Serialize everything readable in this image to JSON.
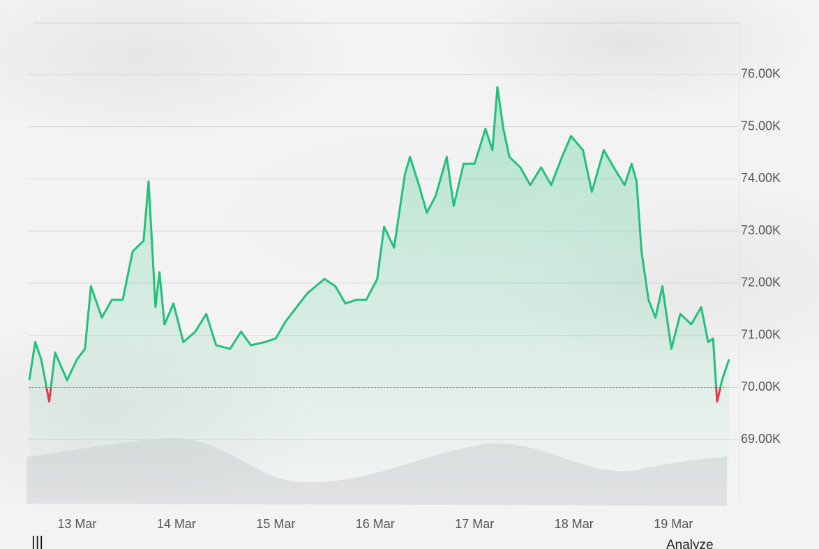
{
  "chart_data": {
    "type": "line",
    "x": [
      -0.48,
      -0.42,
      -0.36,
      -0.28,
      -0.22,
      -0.1,
      0,
      0.08,
      0.14,
      0.25,
      0.35,
      0.46,
      0.56,
      0.67,
      0.72,
      0.79,
      0.83,
      0.88,
      0.97,
      1.07,
      1.19,
      1.3,
      1.4,
      1.54,
      1.65,
      1.75,
      1.89,
      2.0,
      2.1,
      2.21,
      2.32,
      2.49,
      2.6,
      2.7,
      2.81,
      2.91,
      3.02,
      3.09,
      3.19,
      3.3,
      3.35,
      3.44,
      3.52,
      3.61,
      3.72,
      3.79,
      3.89,
      4.0,
      4.11,
      4.18,
      4.23,
      4.29,
      4.35,
      4.46,
      4.56,
      4.67,
      4.77,
      4.88,
      4.97,
      5.09,
      5.18,
      5.3,
      5.4,
      5.51,
      5.58,
      5.63,
      5.68,
      5.75,
      5.82,
      5.89,
      5.98,
      6.07,
      6.18,
      6.28,
      6.35,
      6.4,
      6.44,
      6.49,
      6.56
    ],
    "values": [
      70140,
      70870,
      70540,
      69730,
      70670,
      70140,
      70540,
      70740,
      71940,
      71340,
      71680,
      71680,
      72610,
      72810,
      73950,
      71540,
      72210,
      71210,
      71610,
      70870,
      71070,
      71410,
      70810,
      70740,
      71070,
      70810,
      70870,
      70940,
      71270,
      71540,
      71810,
      72080,
      71940,
      71610,
      71680,
      71680,
      72080,
      73080,
      72680,
      74090,
      74420,
      73880,
      73350,
      73680,
      74420,
      73480,
      74290,
      74290,
      74960,
      74550,
      75760,
      74960,
      74420,
      74220,
      73880,
      74220,
      73880,
      74420,
      74820,
      74550,
      73750,
      74550,
      74220,
      73880,
      74290,
      73950,
      72610,
      71680,
      71340,
      71940,
      70740,
      71410,
      71210,
      71540,
      70870,
      70940,
      69730,
      70140,
      70540
    ],
    "color": "#22c07a",
    "below_color": "#e03a48",
    "baseline": 70000,
    "xlim": [
      -0.48,
      6.56
    ],
    "xticks": [
      {
        "value": 0,
        "label": "13 Mar"
      },
      {
        "value": 1,
        "label": "14 Mar"
      },
      {
        "value": 2,
        "label": "15 Mar"
      },
      {
        "value": 3,
        "label": "16 Mar"
      },
      {
        "value": 4,
        "label": "17 Mar"
      },
      {
        "value": 5,
        "label": "18 Mar"
      },
      {
        "value": 6,
        "label": "19 Mar"
      }
    ],
    "ylim": [
      67800,
      76960
    ],
    "yticks": [
      {
        "value": 69000,
        "label": "69.00K"
      },
      {
        "value": 70000,
        "label": "70.00K"
      },
      {
        "value": 71000,
        "label": "71.00K"
      },
      {
        "value": 72000,
        "label": "72.00K"
      },
      {
        "value": 73000,
        "label": "73.00K"
      },
      {
        "value": 74000,
        "label": "74.00K"
      },
      {
        "value": 75000,
        "label": "75.00K"
      },
      {
        "value": 76000,
        "label": "76.00K"
      }
    ],
    "grid": true
  },
  "footer_text": "Analyze"
}
